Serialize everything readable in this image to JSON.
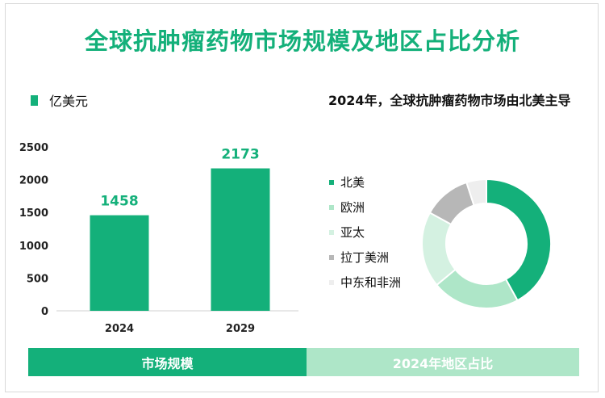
{
  "title": "全球抗肿瘤药物市场规模及地区占比分析",
  "unit_legend": "亿美元",
  "pie_note": "2024年，全球抗肿瘤药物市场由北美主导",
  "footer": {
    "left": "市场规模",
    "right": "2024年地区占比"
  },
  "colors": {
    "accent": "#14b07a",
    "light": "#aee6c8"
  },
  "chart_data": [
    {
      "type": "bar",
      "categories": [
        "2024",
        "2029"
      ],
      "values": [
        1458,
        2173
      ],
      "ylim": [
        0,
        2500
      ],
      "yticks": [
        0,
        500,
        1000,
        1500,
        2000,
        2500
      ],
      "color": "#14b07a"
    },
    {
      "type": "pie",
      "donut": true,
      "labels": [
        "北美",
        "欧洲",
        "亚太",
        "拉丁美洲",
        "中东和非洲"
      ],
      "values": [
        42,
        22,
        19,
        12,
        5
      ],
      "colors": [
        "#14b07a",
        "#aee6c8",
        "#d4f1e1",
        "#b7b7b7",
        "#eeeeee"
      ]
    }
  ]
}
